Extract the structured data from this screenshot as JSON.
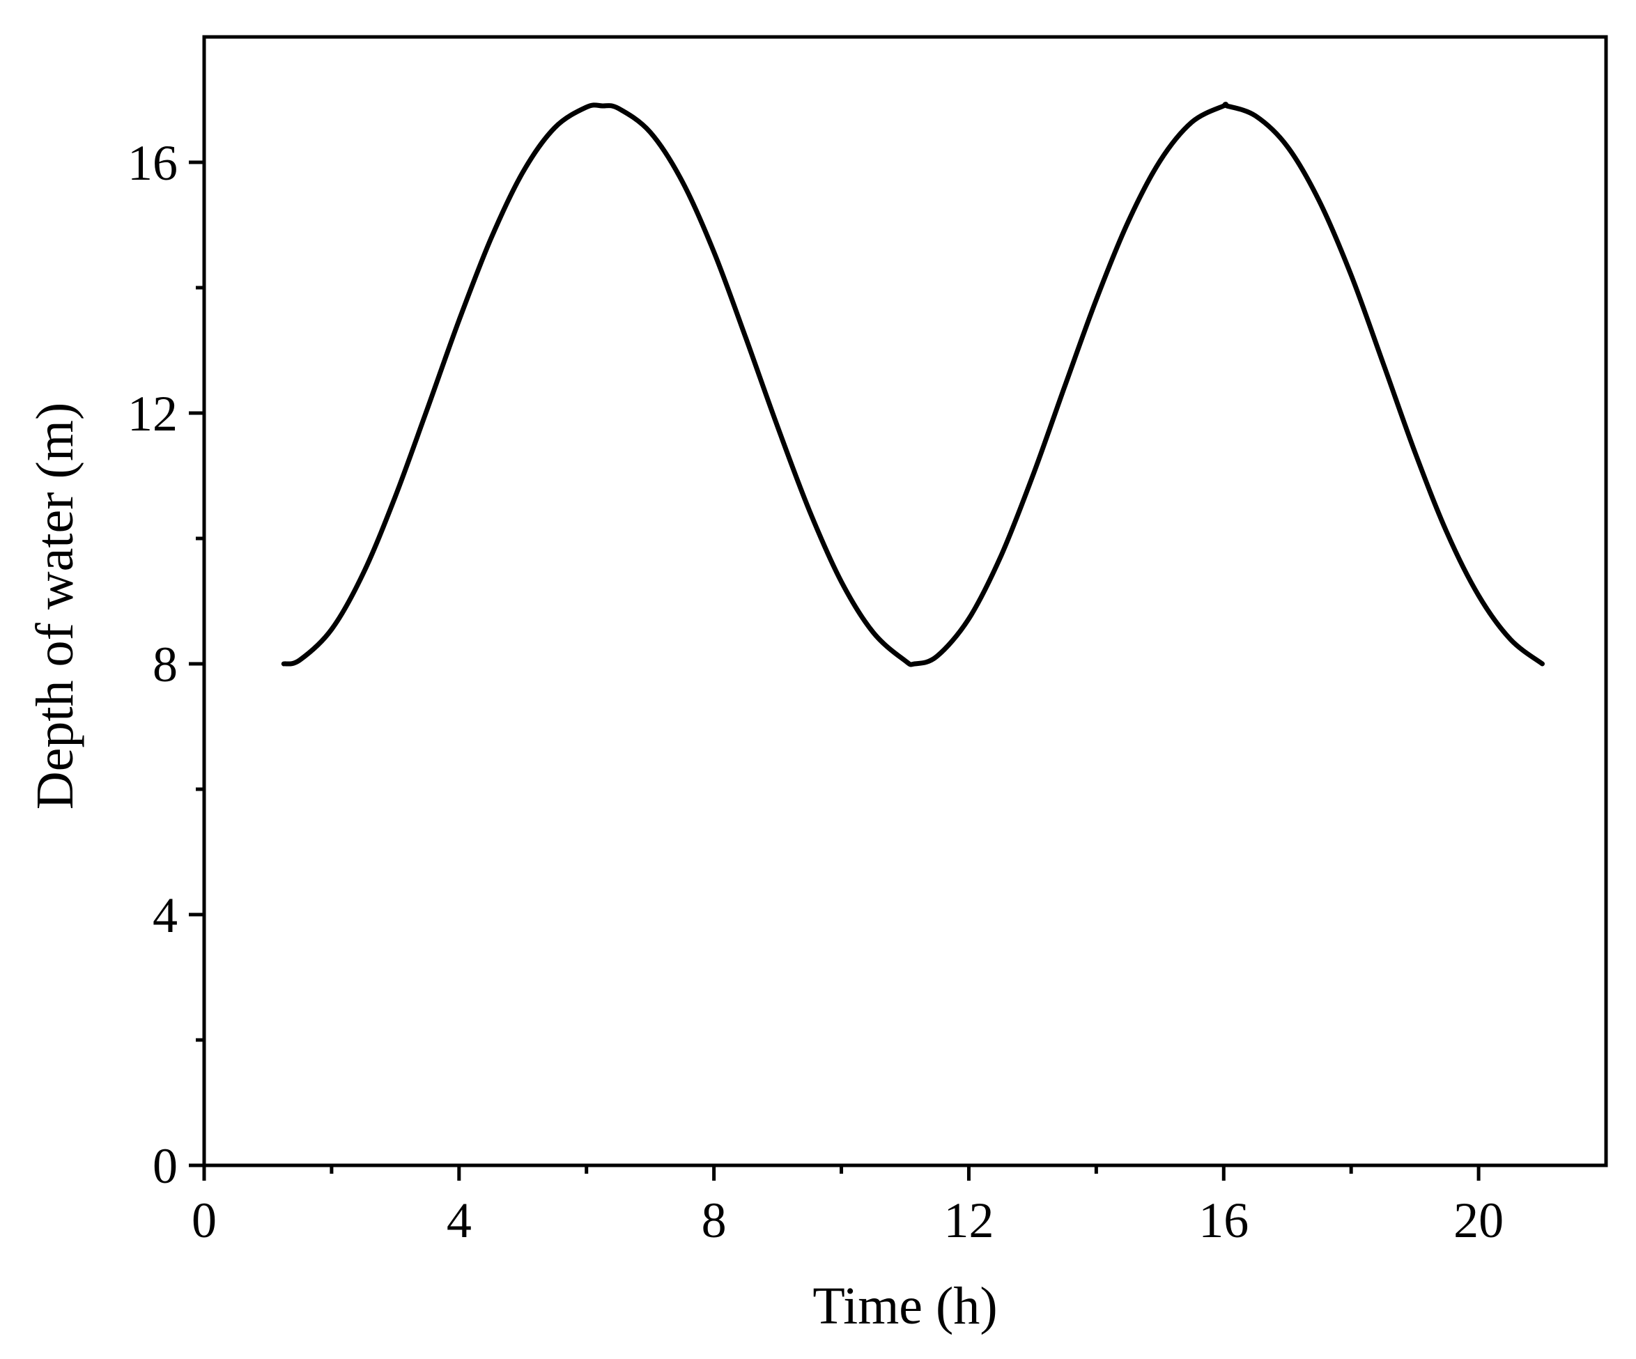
{
  "chart_data": {
    "type": "line",
    "title": "",
    "xlabel": "Time (h)",
    "ylabel": "Depth of water (m)",
    "xlim": [
      0,
      22
    ],
    "ylim": [
      0,
      18
    ],
    "x_ticks": [
      0,
      4,
      8,
      12,
      16,
      20
    ],
    "x_minor_ticks": [
      2,
      6,
      10,
      14,
      18
    ],
    "y_ticks": [
      0,
      4,
      8,
      12,
      16
    ],
    "y_minor_ticks": [
      2,
      6,
      10,
      14
    ],
    "grid": false,
    "legend": "none",
    "line_color": "#000000",
    "series": [
      {
        "x": [
          1.25,
          1.5,
          2.0,
          2.5,
          3.0,
          3.5,
          4.0,
          4.5,
          5.0,
          5.5,
          6.0,
          6.25,
          6.5,
          7.0,
          7.5,
          8.0,
          8.5,
          9.0,
          9.5,
          10.0,
          10.5,
          11.0,
          11.15,
          11.5,
          12.0,
          12.5,
          13.0,
          13.5,
          14.0,
          14.5,
          15.0,
          15.5,
          16.0,
          16.05,
          16.5,
          17.0,
          17.5,
          18.0,
          18.5,
          19.0,
          19.5,
          20.0,
          20.5,
          21.0
        ],
        "y": [
          8.0,
          8.06,
          8.55,
          9.45,
          10.67,
          12.06,
          13.48,
          14.78,
          15.84,
          16.55,
          16.88,
          16.9,
          16.86,
          16.48,
          15.7,
          14.57,
          13.2,
          11.78,
          10.44,
          9.31,
          8.5,
          8.05,
          8.0,
          8.12,
          8.72,
          9.71,
          10.99,
          12.41,
          13.81,
          15.05,
          16.02,
          16.64,
          16.9,
          16.9,
          16.74,
          16.25,
          15.38,
          14.2,
          12.8,
          11.38,
          10.1,
          9.09,
          8.39,
          8.0
        ]
      }
    ]
  }
}
